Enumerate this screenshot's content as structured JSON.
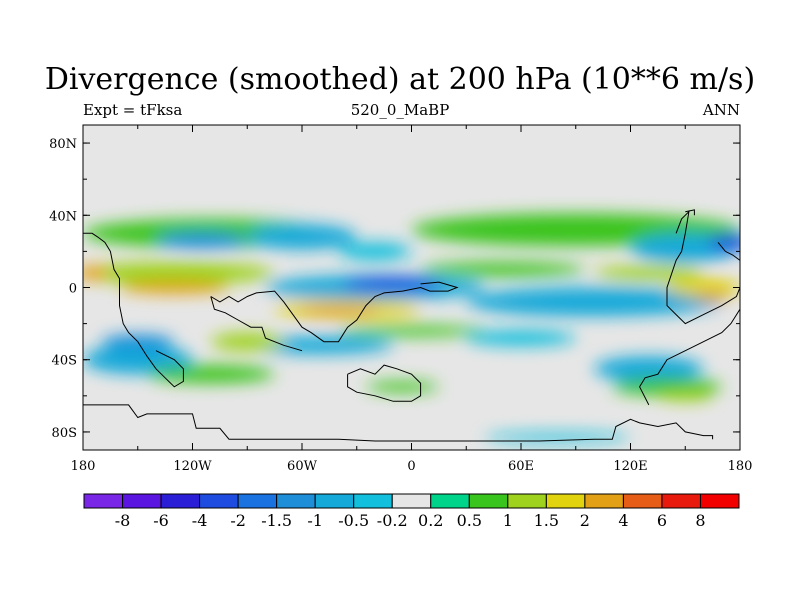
{
  "chart_data": {
    "type": "heatmap",
    "title": "Divergence (smoothed) at 200 hPa (10**6 m/s)",
    "subtitle_left": "Expt = tFksa",
    "subtitle_center": "520_0_MaBP",
    "subtitle_right": "ANN",
    "x_ticks": [
      "180",
      "120W",
      "60W",
      "0",
      "60E",
      "120E",
      "180"
    ],
    "y_ticks": [
      "80N",
      "40N",
      "0",
      "40S",
      "80S"
    ],
    "x_tick_values": [
      -180,
      -120,
      -60,
      0,
      60,
      120,
      180
    ],
    "y_tick_values": [
      80,
      40,
      0,
      -40,
      -80
    ],
    "xlim": [
      -180,
      180
    ],
    "ylim": [
      -90,
      90
    ],
    "levels": [
      "-8",
      "-6",
      "-4",
      "-2",
      "-1.5",
      "-1",
      "-0.5",
      "-0.2",
      "0.2",
      "0.5",
      "1",
      "1.5",
      "2",
      "4",
      "6",
      "8"
    ],
    "level_values": [
      -8,
      -6,
      -4,
      -2,
      -1.5,
      -1,
      -0.5,
      -0.2,
      0.2,
      0.5,
      1,
      1.5,
      2,
      4,
      6,
      8
    ],
    "colors": [
      "#7a26e6",
      "#5a16e0",
      "#2a1fd6",
      "#1e4ce0",
      "#1a72e0",
      "#1e8ed9",
      "#14a9d9",
      "#12bfdd",
      "#e6e6e6",
      "#00d48a",
      "#3ac41e",
      "#9ed21e",
      "#e1d40e",
      "#e2a017",
      "#e55d16",
      "#e81a0d",
      "#f20000"
    ],
    "background_value_color": "#e6e6e6",
    "features": [
      {
        "lon": -110,
        "lat": 30,
        "width": 140,
        "height": 16,
        "value": 0.7
      },
      {
        "lon": -60,
        "lat": 28,
        "width": 60,
        "height": 14,
        "value": -0.7
      },
      {
        "lon": -115,
        "lat": 26,
        "width": 50,
        "height": 9,
        "value": -1.2
      },
      {
        "lon": 90,
        "lat": 32,
        "width": 180,
        "height": 18,
        "value": 0.7
      },
      {
        "lon": 150,
        "lat": 22,
        "width": 60,
        "height": 16,
        "value": -1
      },
      {
        "lon": 175,
        "lat": 25,
        "width": 25,
        "height": 9,
        "value": -2.5
      },
      {
        "lon": -20,
        "lat": 20,
        "width": 40,
        "height": 10,
        "value": -0.4
      },
      {
        "lon": -130,
        "lat": 8,
        "width": 110,
        "height": 12,
        "value": 1.2
      },
      {
        "lon": -130,
        "lat": 0,
        "width": 60,
        "height": 7,
        "value": 2.5
      },
      {
        "lon": -175,
        "lat": 8,
        "width": 18,
        "height": 8,
        "value": 2
      },
      {
        "lon": -20,
        "lat": 0,
        "width": 120,
        "height": 14,
        "value": -1
      },
      {
        "lon": -10,
        "lat": 2,
        "width": 55,
        "height": 8,
        "value": -2.2
      },
      {
        "lon": -35,
        "lat": -12,
        "width": 80,
        "height": 10,
        "value": 1.5
      },
      {
        "lon": -40,
        "lat": -13,
        "width": 45,
        "height": 6,
        "value": 3
      },
      {
        "lon": 50,
        "lat": 10,
        "width": 90,
        "height": 8,
        "value": 0.6
      },
      {
        "lon": 100,
        "lat": -8,
        "width": 140,
        "height": 16,
        "value": -1
      },
      {
        "lon": 130,
        "lat": 8,
        "width": 60,
        "height": 8,
        "value": 1.2
      },
      {
        "lon": 160,
        "lat": 0,
        "width": 40,
        "height": 10,
        "value": 1.5
      },
      {
        "lon": 165,
        "lat": -5,
        "width": 20,
        "height": 5,
        "value": 3
      },
      {
        "lon": -150,
        "lat": -40,
        "width": 60,
        "height": 16,
        "value": -1
      },
      {
        "lon": -110,
        "lat": -48,
        "width": 70,
        "height": 10,
        "value": 0.6
      },
      {
        "lon": -50,
        "lat": -32,
        "width": 80,
        "height": 10,
        "value": -0.6
      },
      {
        "lon": -90,
        "lat": -30,
        "width": 40,
        "height": 10,
        "value": 1.2
      },
      {
        "lon": 60,
        "lat": -28,
        "width": 60,
        "height": 9,
        "value": -0.4
      },
      {
        "lon": 130,
        "lat": -45,
        "width": 60,
        "height": 14,
        "value": -0.6
      },
      {
        "lon": 140,
        "lat": -55,
        "width": 60,
        "height": 10,
        "value": 0.6
      },
      {
        "lon": 150,
        "lat": -60,
        "width": 30,
        "height": 6,
        "value": 1.2
      },
      {
        "lon": -5,
        "lat": -55,
        "width": 40,
        "height": 6,
        "value": 0.6
      },
      {
        "lon": 80,
        "lat": -83,
        "width": 80,
        "height": 5,
        "value": -0.5
      },
      {
        "lon": -150,
        "lat": -30,
        "width": 40,
        "height": 8,
        "value": -1.3
      },
      {
        "lon": 0,
        "lat": -24,
        "width": 80,
        "height": 6,
        "value": 0.5
      }
    ]
  }
}
